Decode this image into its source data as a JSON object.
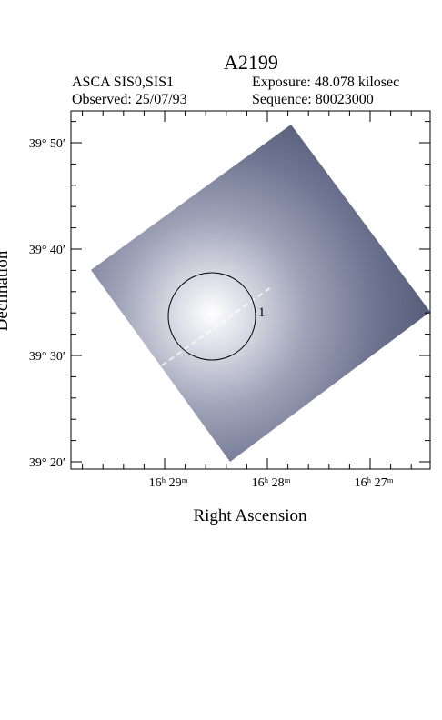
{
  "header": {
    "title": "A2199",
    "instrument": "ASCA SIS0,SIS1",
    "observed": "Observed: 25/07/93",
    "exposure": "Exposure: 48.078 kilosec",
    "sequence": "Sequence: 80023000"
  },
  "axes": {
    "x_label": "Right Ascension",
    "y_label": "Declination",
    "x_ticks": [
      "16ʰ 29ᵐ",
      "16ʰ 28ᵐ",
      "16ʰ 27ᵐ"
    ],
    "y_ticks": [
      "39° 50′",
      "39° 40′",
      "39° 30′",
      "39° 20′"
    ]
  },
  "annotations": {
    "source_label": "1"
  }
}
